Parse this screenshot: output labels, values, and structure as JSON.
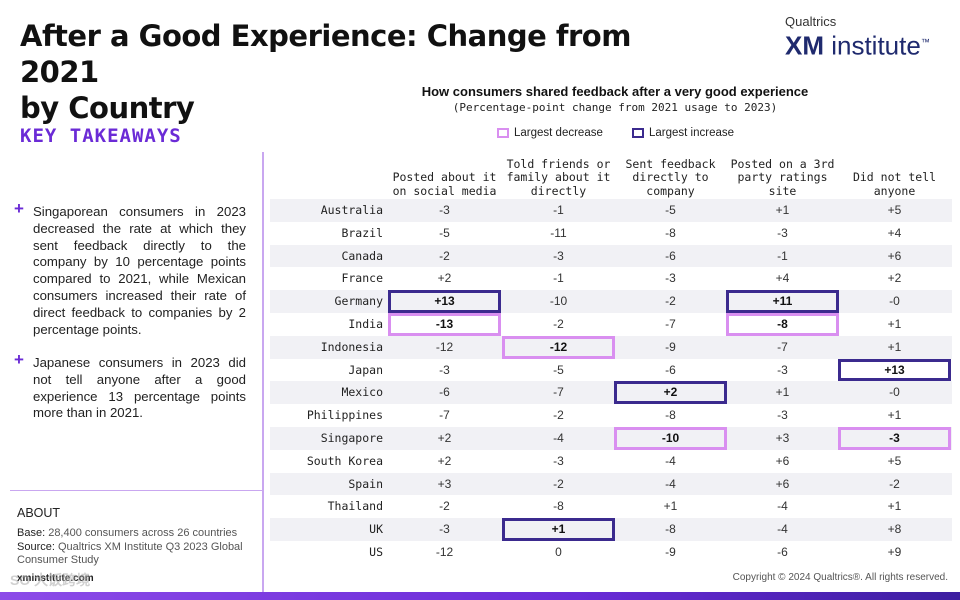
{
  "header": {
    "title_line1": "After a Good Experience: Change from 2021",
    "title_line2": "by Country",
    "logo_top": "Qualtrics",
    "logo_bold": "XM",
    "logo_rest": " institute",
    "logo_tm": "™"
  },
  "sidebar": {
    "takeaways_title": "KEY TAKEAWAYS",
    "bullets": [
      "Singaporean consumers in 2023 decreased the rate at which they sent feedback directly to the company by 10 percentage points compared to 2021, while Mexican consumers increased their rate of direct feedback to companies by 2 percentage points.",
      "Japanese consumers in 2023 did not tell anyone after a good experience 13 percentage points more than in 2021."
    ],
    "bullet_marker": "+",
    "about_title": "ABOUT",
    "base_label": "Base:",
    "base_text": " 28,400 consumers across 26 countries",
    "source_label": "Source:",
    "source_text": " Qualtrics XM Institute Q3 2023 Global Consumer Study",
    "url": "xminstitute.com"
  },
  "footer": {
    "copyright": "Copyright © 2024 Qualtrics®. All rights reserved.",
    "watermark": "SO 大饭跨境"
  },
  "colors": {
    "accent": "#6b2bd6",
    "increase_box": "#3b2a8e",
    "decrease_box": "#d98ff0",
    "stripe": "#f1f1f5"
  },
  "chart_data": {
    "type": "table",
    "title": "How consumers shared feedback after a very good experience",
    "subtitle": "(Percentage-point change from 2021 usage to 2023)",
    "legend": {
      "decrease": "Largest decrease",
      "increase": "Largest increase"
    },
    "columns": [
      "Posted about it on social media",
      "Told friends or family about it directly",
      "Sent feedback directly to company",
      "Posted on a 3rd party ratings site",
      "Did not tell anyone"
    ],
    "rows": [
      {
        "country": "Australia",
        "values": [
          "-3",
          "-1",
          "-5",
          "+1",
          "+5"
        ],
        "highlight": [
          "",
          "",
          "",
          "",
          ""
        ]
      },
      {
        "country": "Brazil",
        "values": [
          "-5",
          "-11",
          "-8",
          "-3",
          "+4"
        ],
        "highlight": [
          "",
          "",
          "",
          "",
          ""
        ]
      },
      {
        "country": "Canada",
        "values": [
          "-2",
          "-3",
          "-6",
          "-1",
          "+6"
        ],
        "highlight": [
          "",
          "",
          "",
          "",
          ""
        ]
      },
      {
        "country": "France",
        "values": [
          "+2",
          "-1",
          "-3",
          "+4",
          "+2"
        ],
        "highlight": [
          "",
          "",
          "",
          "",
          ""
        ]
      },
      {
        "country": "Germany",
        "values": [
          "+13",
          "-10",
          "-2",
          "+11",
          "-0"
        ],
        "highlight": [
          "inc",
          "",
          "",
          "inc",
          ""
        ]
      },
      {
        "country": "India",
        "values": [
          "-13",
          "-2",
          "-7",
          "-8",
          "+1"
        ],
        "highlight": [
          "dec",
          "",
          "",
          "dec",
          ""
        ]
      },
      {
        "country": "Indonesia",
        "values": [
          "-12",
          "-12",
          "-9",
          "-7",
          "+1"
        ],
        "highlight": [
          "",
          "dec",
          "",
          "",
          ""
        ]
      },
      {
        "country": "Japan",
        "values": [
          "-3",
          "-5",
          "-6",
          "-3",
          "+13"
        ],
        "highlight": [
          "",
          "",
          "",
          "",
          "inc"
        ]
      },
      {
        "country": "Mexico",
        "values": [
          "-6",
          "-7",
          "+2",
          "+1",
          "-0"
        ],
        "highlight": [
          "",
          "",
          "inc",
          "",
          ""
        ]
      },
      {
        "country": "Philippines",
        "values": [
          "-7",
          "-2",
          "-8",
          "-3",
          "+1"
        ],
        "highlight": [
          "",
          "",
          "",
          "",
          ""
        ]
      },
      {
        "country": "Singapore",
        "values": [
          "+2",
          "-4",
          "-10",
          "+3",
          "-3"
        ],
        "highlight": [
          "",
          "",
          "dec",
          "",
          "dec"
        ]
      },
      {
        "country": "South Korea",
        "values": [
          "+2",
          "-3",
          "-4",
          "+6",
          "+5"
        ],
        "highlight": [
          "",
          "",
          "",
          "",
          ""
        ]
      },
      {
        "country": "Spain",
        "values": [
          "+3",
          "-2",
          "-4",
          "+6",
          "-2"
        ],
        "highlight": [
          "",
          "",
          "",
          "",
          ""
        ]
      },
      {
        "country": "Thailand",
        "values": [
          "-2",
          "-8",
          "+1",
          "-4",
          "+1"
        ],
        "highlight": [
          "",
          "",
          "",
          "",
          ""
        ]
      },
      {
        "country": "UK",
        "values": [
          "-3",
          "+1",
          "-8",
          "-4",
          "+8"
        ],
        "highlight": [
          "",
          "inc",
          "",
          "",
          ""
        ]
      },
      {
        "country": "US",
        "values": [
          "-12",
          "0",
          "-9",
          "-6",
          "+9"
        ],
        "highlight": [
          "",
          "",
          "",
          "",
          ""
        ]
      }
    ]
  }
}
